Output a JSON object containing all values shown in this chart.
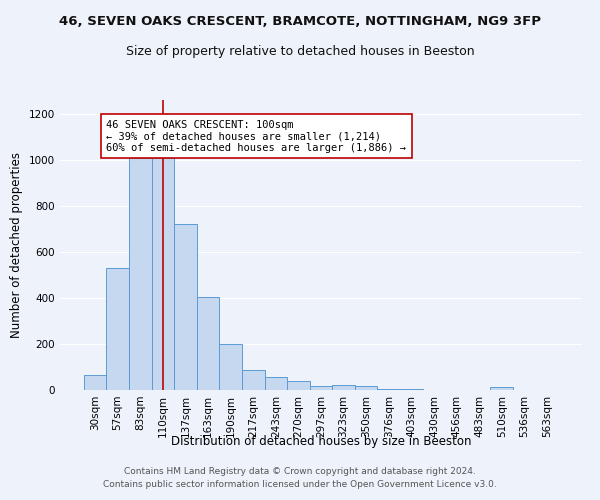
{
  "title1": "46, SEVEN OAKS CRESCENT, BRAMCOTE, NOTTINGHAM, NG9 3FP",
  "title2": "Size of property relative to detached houses in Beeston",
  "xlabel": "Distribution of detached houses by size in Beeston",
  "ylabel": "Number of detached properties",
  "bar_color": "#c5d8f0",
  "bar_edge_color": "#5b9bd5",
  "marker_line_color": "#c00000",
  "categories": [
    "30sqm",
    "57sqm",
    "83sqm",
    "110sqm",
    "137sqm",
    "163sqm",
    "190sqm",
    "217sqm",
    "243sqm",
    "270sqm",
    "297sqm",
    "323sqm",
    "350sqm",
    "376sqm",
    "403sqm",
    "430sqm",
    "456sqm",
    "483sqm",
    "510sqm",
    "536sqm",
    "563sqm"
  ],
  "values": [
    65,
    530,
    1010,
    1010,
    720,
    405,
    198,
    88,
    58,
    38,
    18,
    22,
    18,
    5,
    3,
    2,
    1,
    1,
    12,
    1,
    1
  ],
  "ylim": [
    0,
    1260
  ],
  "yticks": [
    0,
    200,
    400,
    600,
    800,
    1000,
    1200
  ],
  "marker_bin_index": 3,
  "annotation_text": "46 SEVEN OAKS CRESCENT: 100sqm\n← 39% of detached houses are smaller (1,214)\n60% of semi-detached houses are larger (1,886) →",
  "annotation_box_color": "#ffffff",
  "annotation_box_edge": "#c00000",
  "footer1": "Contains HM Land Registry data © Crown copyright and database right 2024.",
  "footer2": "Contains public sector information licensed under the Open Government Licence v3.0.",
  "bg_color": "#eef2fa",
  "grid_color": "#ffffff",
  "title1_fontsize": 9.5,
  "title2_fontsize": 9,
  "axis_label_fontsize": 8.5,
  "tick_fontsize": 7.5,
  "annotation_fontsize": 7.5,
  "footer_fontsize": 6.5
}
